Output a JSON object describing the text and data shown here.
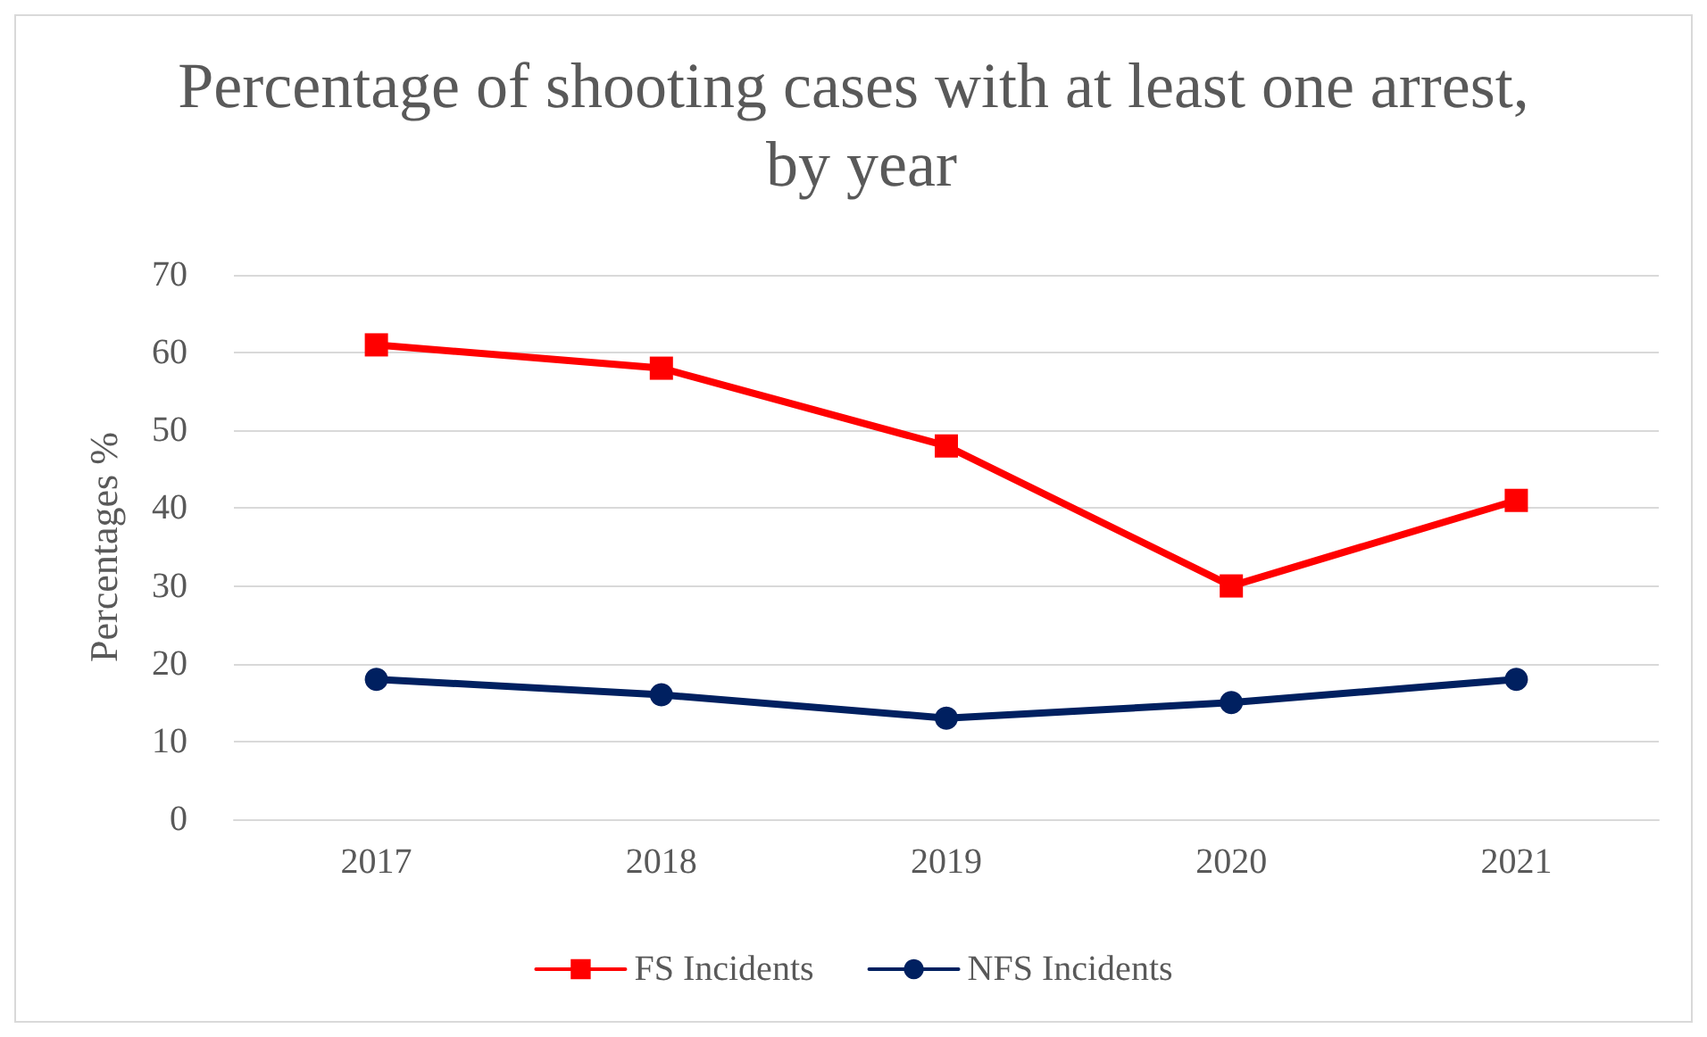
{
  "chart_data": {
    "type": "line",
    "title": "Percentage of shooting cases with at least one arrest, by year",
    "ylabel": "Percentages %",
    "categories": [
      "2017",
      "2018",
      "2019",
      "2020",
      "2021"
    ],
    "series": [
      {
        "name": "FS Incidents",
        "color": "#ff0000",
        "marker": "square",
        "values": [
          61,
          58,
          48,
          30,
          41
        ]
      },
      {
        "name": "NFS Incidents",
        "color": "#002060",
        "marker": "circle",
        "values": [
          18,
          16,
          13,
          15,
          18
        ]
      }
    ],
    "ylim": [
      0,
      70
    ],
    "yticks": [
      0,
      10,
      20,
      30,
      40,
      50,
      60,
      70
    ],
    "grid": "y",
    "legend": "bottom",
    "line_style": "solid"
  }
}
